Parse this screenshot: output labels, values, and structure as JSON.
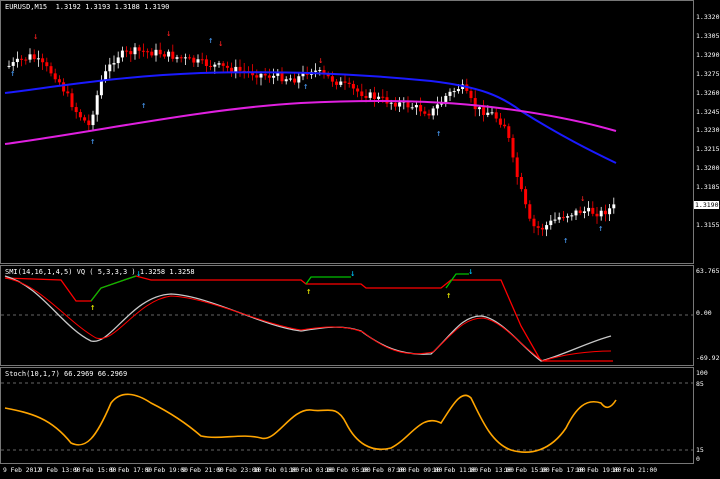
{
  "main": {
    "title": "EURUSD,M15",
    "ohlc": "1.3192 1.3193 1.3188 1.3190",
    "current_price": "1.3190",
    "price_ticks": [
      "1.3320",
      "1.3305",
      "1.3290",
      "1.3275",
      "1.3260",
      "1.3245",
      "1.3230",
      "1.3215",
      "1.3200",
      "1.3185",
      "1.3170",
      "1.3155"
    ]
  },
  "indicator1": {
    "label": "SMI(14,16,1,4,5) VQ ( 5,3,3,3 ) 1.3258 1.3258",
    "ticks": [
      "63.7657",
      "0.00",
      "-69.9284"
    ]
  },
  "indicator2": {
    "label": "Stoch(10,1,7) 66.2969 66.2969",
    "ticks": [
      "100",
      "85",
      "15",
      "0"
    ]
  },
  "time_labels": [
    "9 Feb 2012",
    "9 Feb 13:00",
    "9 Feb 15:00",
    "9 Feb 17:00",
    "9 Feb 19:00",
    "9 Feb 21:00",
    "9 Feb 23:00",
    "10 Feb 01:00",
    "10 Feb 03:00",
    "10 Feb 05:00",
    "10 Feb 07:00",
    "10 Feb 09:00",
    "10 Feb 11:00",
    "10 Feb 13:00",
    "10 Feb 15:00",
    "10 Feb 17:00",
    "10 Feb 19:00",
    "10 Feb 21:00"
  ],
  "colors": {
    "bull": "#ffffff",
    "bear": "#ff0000",
    "ma_fast": "#1a1aff",
    "ma_slow": "#e020e0",
    "smi_main": "#c8c8c8",
    "smi_signal": "#ff0000",
    "vq_up": "#00c000",
    "vq_down": "#ff0000",
    "stoch": "#ffa500",
    "arrow_up": "#4aa0ff",
    "arrow_down": "#ff2020",
    "arrow_yellow": "#ffff00",
    "arrow_cyan": "#00c8ff"
  }
}
